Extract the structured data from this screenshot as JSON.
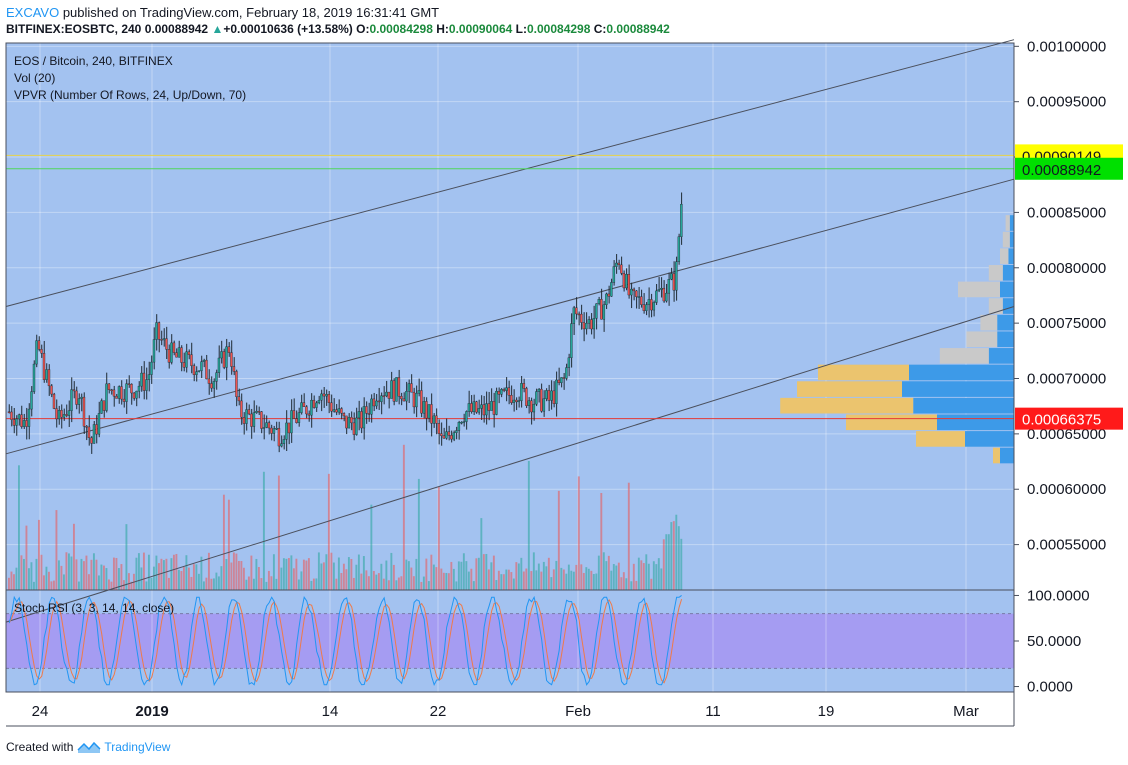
{
  "header": {
    "user": "EXCAVO",
    "published_text": " published on TradingView.com, February 18, 2019 16:31:41 GMT",
    "symbol": "BITFINEX:EOSBTC, 240",
    "last": "0.00088942",
    "change": "+0.00010636 (+13.58%)",
    "o_label": "O:",
    "o": "0.00084298",
    "h_label": "H:",
    "h": "0.00090064",
    "l_label": "L:",
    "l": "0.00084298",
    "c_label": "C:",
    "c": "0.00088942"
  },
  "footer": {
    "created_with": "Created with",
    "brand": "TradingView",
    "logo_icon": "tradingview-logo-icon"
  },
  "colors": {
    "plot_bg": "#a3c2f0",
    "stoch_band": "#a59cf2",
    "up": "#26a69a",
    "down": "#ef5350",
    "channel": "#4a4f5c",
    "hline_red": "#e53935",
    "badge_yellow": "#ffff00",
    "badge_green": "#00e000",
    "badge_red": "#ff1a1a",
    "vp_blue": "#3d9ae8",
    "vp_yellow": "#ebc46e",
    "vp_grey": "#c9c9c9",
    "stoch_k": "#2196f3",
    "stoch_d": "#ef7a4a"
  },
  "chart_data": {
    "type": "candlestick",
    "pair": "EOS / Bitcoin, 240, BITFINEX",
    "indicator_labels": [
      "Vol (20)",
      "VPVR (Number Of Rows, 24, Up/Down, 70)"
    ],
    "price_axis": {
      "ticks": [
        "0.00100000",
        "0.00095000",
        "0.00090000",
        "0.00085000",
        "0.00080000",
        "0.00075000",
        "0.00070000",
        "0.00065000",
        "0.00060000",
        "0.00055000"
      ],
      "tick_values": [
        0.001,
        0.00095,
        0.0009,
        0.00085,
        0.0008,
        0.00075,
        0.0007,
        0.00065,
        0.0006,
        0.00055
      ],
      "ylim": [
        0.000509,
        0.001003
      ]
    },
    "time_axis": {
      "labels": [
        "24",
        "2019",
        "14",
        "22",
        "Feb",
        "11",
        "19",
        "Mar"
      ],
      "bold": [
        false,
        true,
        false,
        false,
        false,
        false,
        false,
        false
      ]
    },
    "price_badges": [
      {
        "value": 0.00090149,
        "text": "0.00090149",
        "color": "yellow"
      },
      {
        "value": 0.00088942,
        "text": "0.00088942",
        "color": "green"
      },
      {
        "value": 0.00066375,
        "text": "0.00066375",
        "color": "red"
      }
    ],
    "horizontal_lines": [
      {
        "value": 0.00066375,
        "color": "red"
      },
      {
        "value": 0.00090149,
        "color": "yellow"
      },
      {
        "value": 0.00088942,
        "color": "green"
      }
    ],
    "channel_lines": [
      {
        "from": [
          0,
          0.000765
        ],
        "to": [
          1,
          0.001006
        ]
      },
      {
        "from": [
          0,
          0.000632
        ],
        "to": [
          1,
          0.00088
        ]
      },
      {
        "from": [
          0,
          0.00048
        ],
        "to": [
          1,
          0.000765
        ]
      }
    ],
    "price_path": [
      [
        0,
        0.00067
      ],
      [
        0.02,
        0.00066
      ],
      [
        0.035,
        0.00073
      ],
      [
        0.06,
        0.00066
      ],
      [
        0.085,
        0.00069
      ],
      [
        0.1,
        0.00064
      ],
      [
        0.12,
        0.00069
      ],
      [
        0.15,
        0.00069
      ],
      [
        0.17,
        0.0007
      ],
      [
        0.18,
        0.00074
      ],
      [
        0.2,
        0.00072
      ],
      [
        0.235,
        0.00071
      ],
      [
        0.25,
        0.0007
      ],
      [
        0.27,
        0.00073
      ],
      [
        0.28,
        0.00067
      ],
      [
        0.31,
        0.00066
      ],
      [
        0.33,
        0.00065
      ],
      [
        0.36,
        0.00067
      ],
      [
        0.38,
        0.00069
      ],
      [
        0.41,
        0.00066
      ],
      [
        0.43,
        0.00066
      ],
      [
        0.45,
        0.00069
      ],
      [
        0.48,
        0.00069
      ],
      [
        0.5,
        0.00068
      ],
      [
        0.52,
        0.00066
      ],
      [
        0.53,
        0.00064
      ],
      [
        0.555,
        0.00067
      ],
      [
        0.58,
        0.00067
      ],
      [
        0.6,
        0.00068
      ],
      [
        0.62,
        0.00069
      ],
      [
        0.64,
        0.00068
      ],
      [
        0.66,
        0.00068
      ],
      [
        0.68,
        0.0007
      ],
      [
        0.69,
        0.00076
      ],
      [
        0.71,
        0.00075
      ],
      [
        0.73,
        0.00077
      ],
      [
        0.745,
        0.00081
      ],
      [
        0.76,
        0.00077
      ],
      [
        0.78,
        0.00077
      ],
      [
        0.8,
        0.00078
      ],
      [
        0.815,
        0.00079
      ],
      [
        0.82,
        0.00084
      ],
      [
        0.825,
        0.000889
      ]
    ],
    "volume_profile": [
      {
        "price": 0.00063,
        "up": 0.1,
        "down": 0.05
      },
      {
        "price": 0.000645,
        "up": 0.35,
        "down": 0.35
      },
      {
        "price": 0.00066,
        "up": 0.55,
        "down": 0.65
      },
      {
        "price": 0.000675,
        "up": 0.72,
        "down": 0.95
      },
      {
        "price": 0.00069,
        "up": 0.8,
        "down": 0.75
      },
      {
        "price": 0.000705,
        "up": 0.75,
        "down": 0.65
      },
      {
        "price": 0.00072,
        "up": 0.18,
        "down": 0.35
      },
      {
        "price": 0.000735,
        "up": 0.12,
        "down": 0.22
      },
      {
        "price": 0.00075,
        "up": 0.12,
        "down": 0.12
      },
      {
        "price": 0.000765,
        "up": 0.08,
        "down": 0.1
      },
      {
        "price": 0.00078,
        "up": 0.1,
        "down": 0.3
      },
      {
        "price": 0.000795,
        "up": 0.08,
        "down": 0.1
      },
      {
        "price": 0.00081,
        "up": 0.04,
        "down": 0.06
      },
      {
        "price": 0.000825,
        "up": 0.03,
        "down": 0.05
      },
      {
        "price": 0.00084,
        "up": 0.03,
        "down": 0.03
      }
    ],
    "stoch_rsi": {
      "label": "Stoch RSI (3, 3, 14, 14, close)",
      "ticks": [
        "100.0000",
        "50.0000",
        "0.0000"
      ],
      "tick_values": [
        100,
        50,
        0
      ],
      "band": [
        20,
        80
      ],
      "ylim": [
        -6,
        106
      ]
    }
  }
}
